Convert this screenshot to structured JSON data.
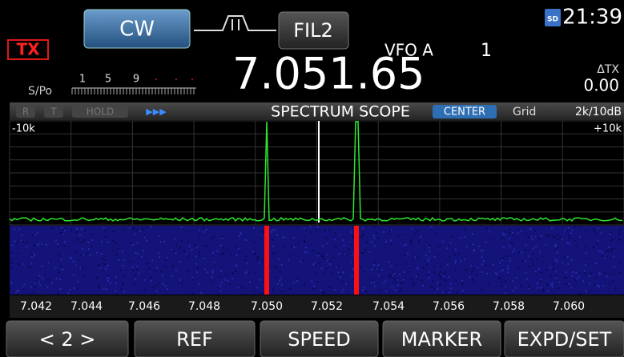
{
  "header": {
    "tx": "TX",
    "mode": "CW",
    "filter": "FIL2",
    "vfo": "VFO A",
    "memory": "1",
    "sd": "SD",
    "time": "21:39"
  },
  "meter": {
    "label": "S/Po",
    "scale": [
      "1",
      "5",
      "9"
    ]
  },
  "frequency": "7.051.65",
  "delta_tx": {
    "label": "ΔTX",
    "value": "0.00"
  },
  "scope_bar": {
    "indicators": [
      "R",
      "T",
      "HOLD"
    ],
    "arrows": "▶▶▶",
    "title": "SPECTRUM SCOPE",
    "mode": "CENTER",
    "grid": "Grid",
    "span": "2k/10dB"
  },
  "scope": {
    "left": "-10k",
    "right": "+10k",
    "frequencies": [
      "7.042",
      "7.044",
      "7.046",
      "7.048",
      "7.050",
      "7.052",
      "7.054",
      "7.056",
      "7.058",
      "7.060"
    ]
  },
  "buttons": [
    "< 2 >",
    "REF",
    "SPEED",
    "MARKER",
    "EXPD/SET"
  ]
}
